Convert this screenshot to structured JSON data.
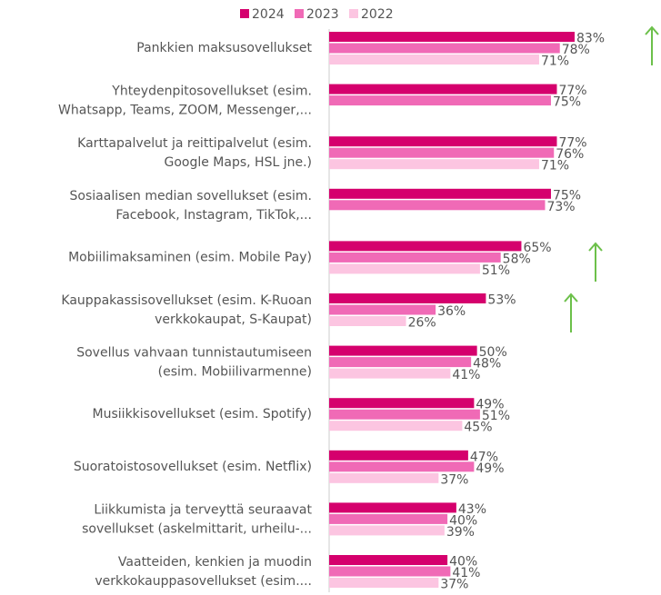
{
  "chart_data": {
    "type": "bar",
    "orientation": "horizontal",
    "categories": [
      [
        "Pankkien maksusovellukset"
      ],
      [
        "Yhteydenpitosovellukset (esim.",
        "Whatsapp, Teams, ZOOM, Messenger,..."
      ],
      [
        "Karttapalvelut ja reittipalvelut (esim.",
        "Google Maps, HSL jne.)"
      ],
      [
        "Sosiaalisen median sovellukset (esim.",
        "Facebook, Instagram, TikTok,..."
      ],
      [
        "Mobiilimaksaminen (esim. Mobile Pay)"
      ],
      [
        "Kauppakassisovellukset (esim. K-Ruoan",
        "verkkokaupat, S-Kaupat)"
      ],
      [
        "Sovellus vahvaan tunnistautumiseen",
        "(esim. Mobiilivarmenne)"
      ],
      [
        "Musiikkisovellukset (esim. Spotify)"
      ],
      [
        "Suoratoistosovellukset (esim. Netflix)"
      ],
      [
        "Liikkumista ja terveyttä seuraavat",
        "sovellukset (askelmittarit, urheilu-..."
      ],
      [
        "Vaatteiden, kenkien ja muodin",
        "verkkokauppasovellukset (esim...."
      ]
    ],
    "series": [
      {
        "name": "2024",
        "color": "#d5006d",
        "values": [
          83,
          77,
          77,
          75,
          65,
          53,
          50,
          49,
          47,
          43,
          40
        ],
        "value_labels": [
          "83%",
          "77%",
          "77%",
          "75%",
          "65%",
          "53%",
          "50%",
          "49%",
          "47%",
          "43%",
          "40%"
        ]
      },
      {
        "name": "2023",
        "color": "#f06ab6",
        "values": [
          78,
          75,
          76,
          73,
          58,
          36,
          48,
          51,
          49,
          40,
          41
        ],
        "value_labels": [
          "78%",
          "75%",
          "76%",
          "73%",
          "58%",
          "36%",
          "48%",
          "51%",
          "49%",
          "40%",
          "41%"
        ]
      },
      {
        "name": "2022",
        "color": "#fcc5e1",
        "values": [
          71,
          null,
          71,
          null,
          51,
          26,
          41,
          45,
          37,
          39,
          37
        ],
        "value_labels": [
          "71%",
          null,
          "71%",
          null,
          "51%",
          "26%",
          "41%",
          "45%",
          "37%",
          "39%",
          "37%"
        ]
      }
    ],
    "legend": "top"
  }
}
